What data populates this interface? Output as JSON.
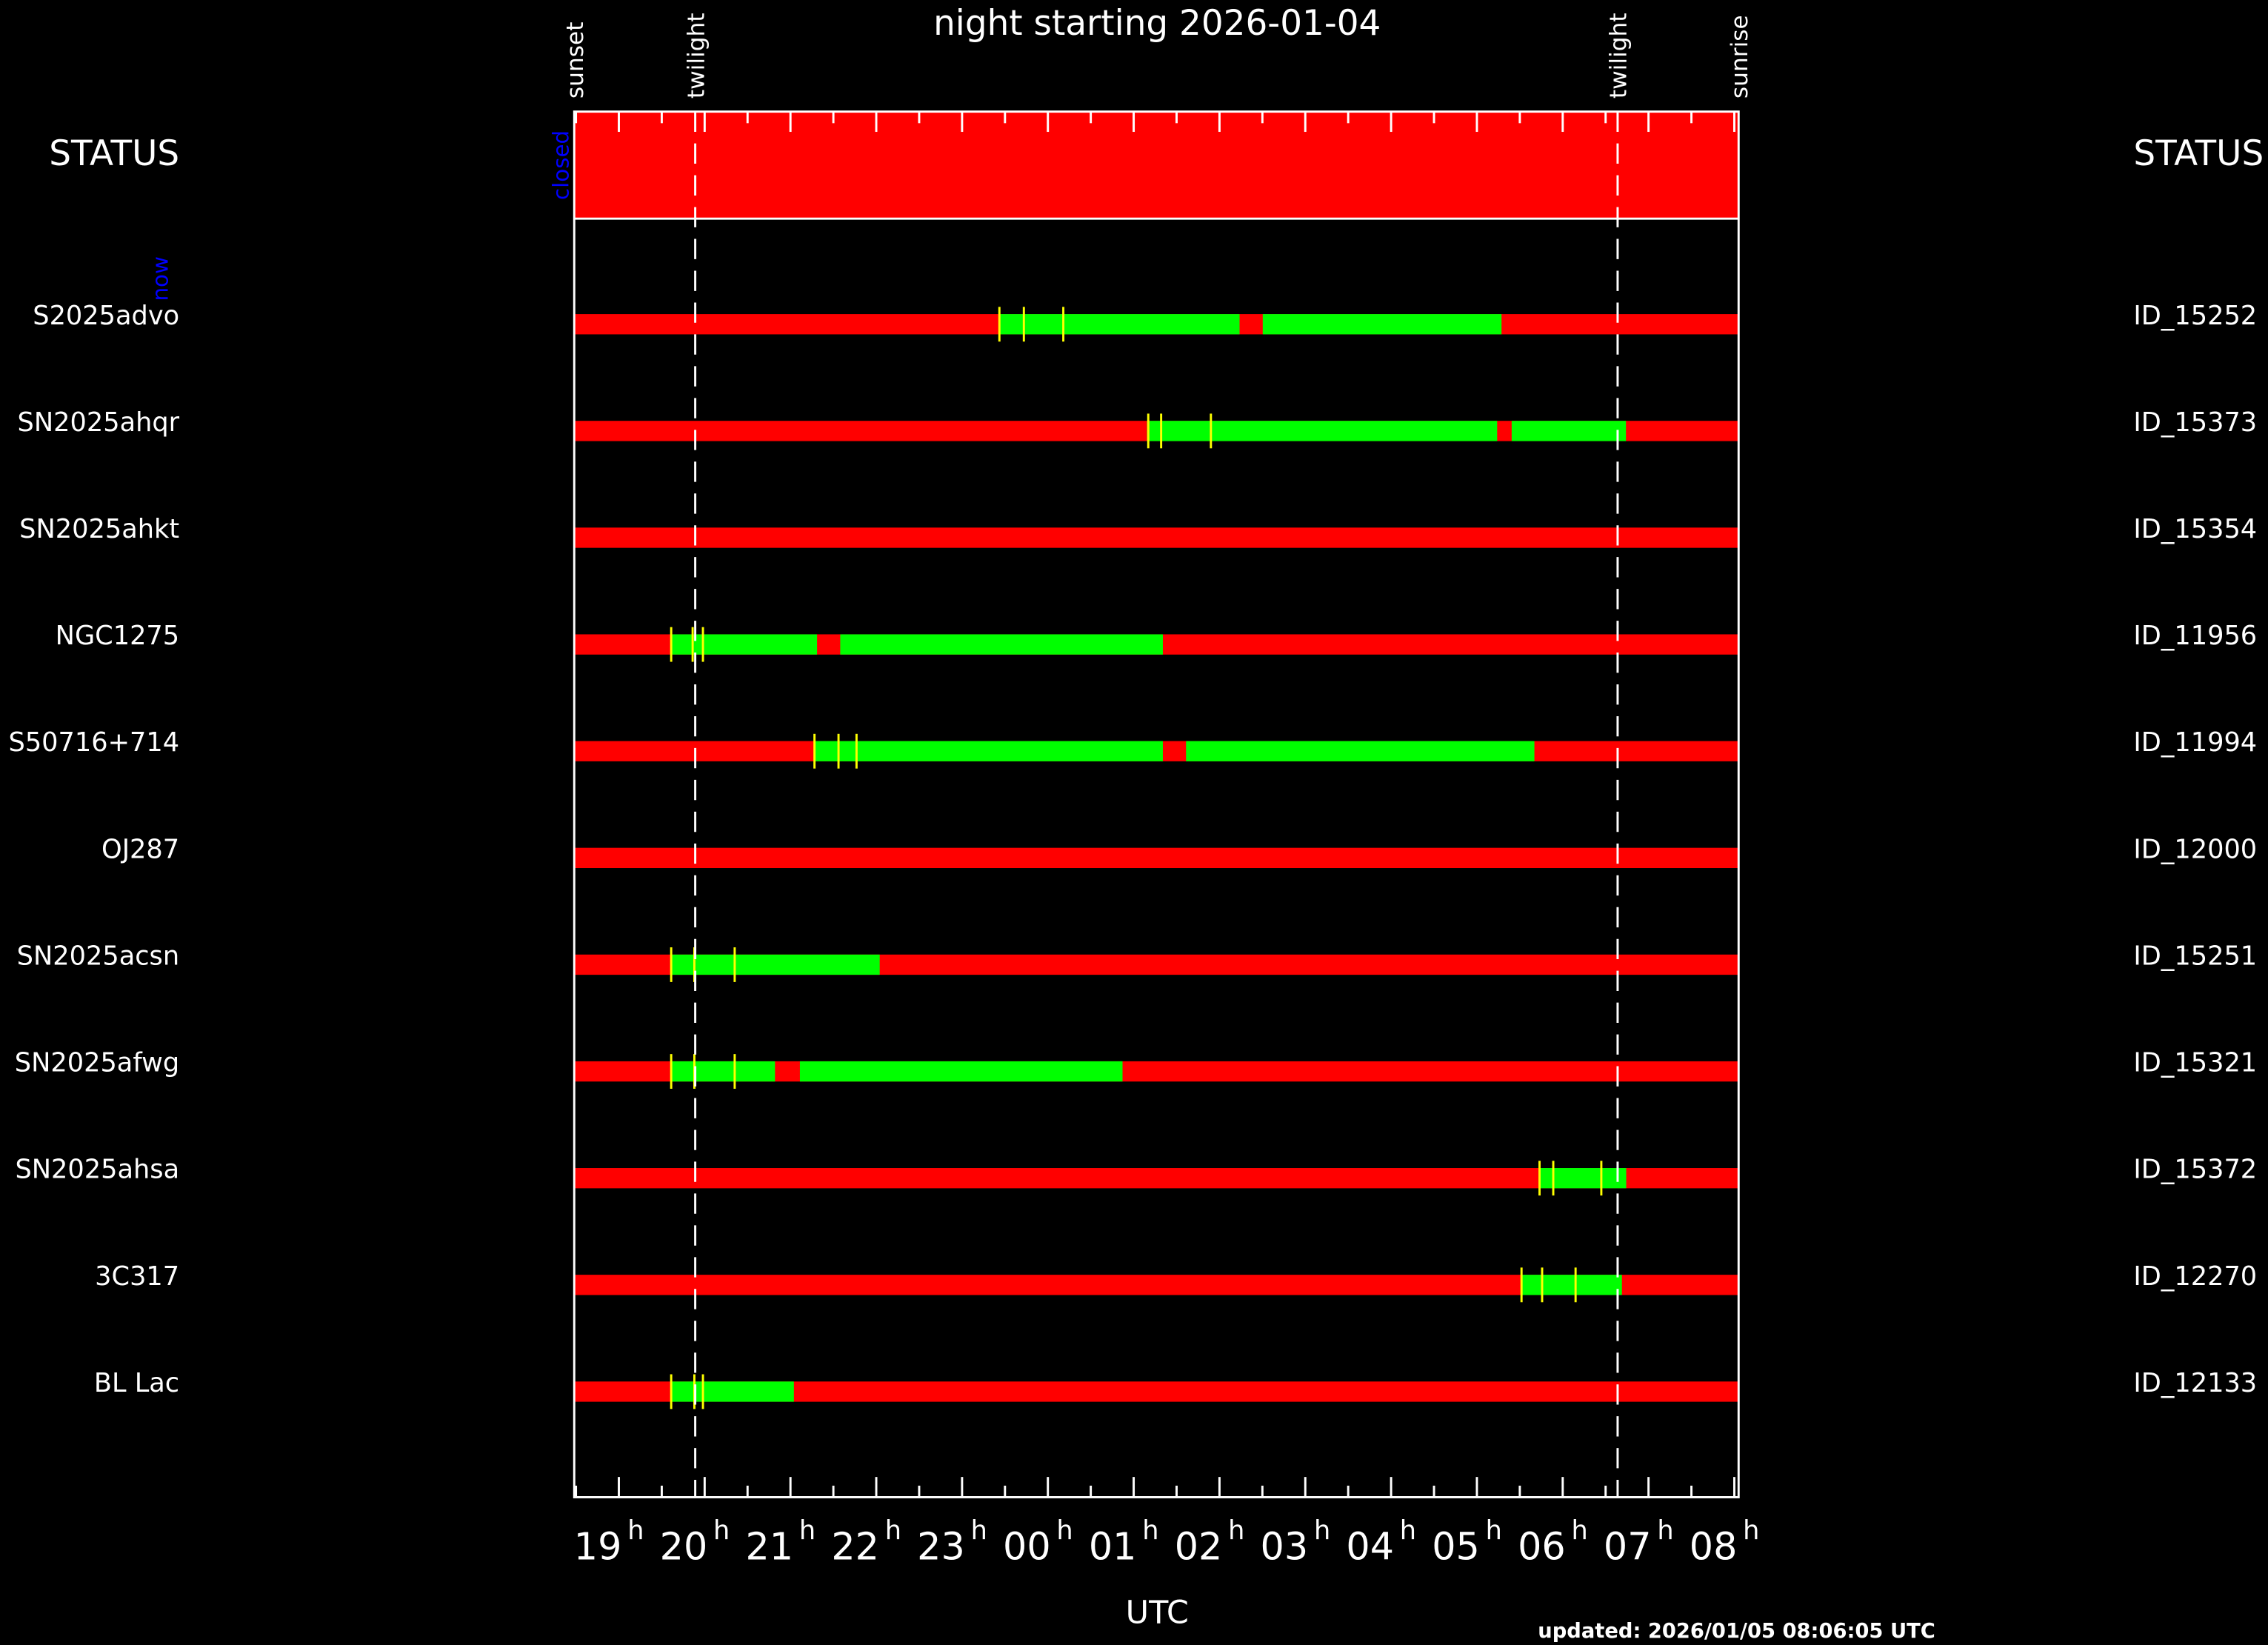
{
  "chart_data": {
    "type": "timeline",
    "title": "night starting 2026-01-04",
    "xlabel": "UTC",
    "updated": "updated: 2026/01/05 08:06:05 UTC",
    "now_label": "now",
    "xlim": [
      18.48,
      32.05
    ],
    "xticks": [
      19,
      20,
      21,
      22,
      23,
      {
        "value": 24,
        "label": "00"
      },
      {
        "value": 25,
        "label": "01"
      },
      {
        "value": 26,
        "label": "02"
      },
      {
        "value": 27,
        "label": "03"
      },
      {
        "value": 28,
        "label": "04"
      },
      {
        "value": 29,
        "label": "05"
      },
      {
        "value": 30,
        "label": "06"
      },
      {
        "value": 31,
        "label": "07"
      },
      {
        "value": 32,
        "label": "08"
      }
    ],
    "xtick_suffix": "h",
    "events": [
      {
        "label": "sunset",
        "x": 18.48
      },
      {
        "label": "twilight",
        "x": 19.89
      },
      {
        "label": "twilight",
        "x": 30.64
      },
      {
        "label": "sunrise",
        "x": 32.05
      }
    ],
    "status": {
      "label": "STATUS",
      "state": "closed",
      "color": "#ff0000"
    },
    "colors": {
      "unobservable": "#ff0000",
      "observable": "#00ff00",
      "marker": "#ffff00"
    },
    "rows": [
      {
        "name": "S2025advo",
        "id": "ID_15252",
        "windows": [
          [
            23.435,
            26.234
          ],
          [
            26.504,
            29.287
          ]
        ],
        "markers": [
          23.435,
          23.72,
          24.18
        ]
      },
      {
        "name": "SN2025ahqr",
        "id": "ID_15373",
        "windows": [
          [
            25.155,
            29.236
          ],
          [
            29.405,
            30.737
          ]
        ],
        "markers": [
          25.17,
          25.32,
          25.9
        ]
      },
      {
        "name": "SN2025ahkt",
        "id": "ID_15354",
        "windows": [],
        "markers": []
      },
      {
        "name": "NGC1275",
        "id": "ID_11956",
        "windows": [
          [
            19.607,
            21.31
          ],
          [
            21.58,
            25.34
          ]
        ],
        "markers": [
          19.61,
          19.86,
          19.98
        ]
      },
      {
        "name": "S50716+714",
        "id": "ID_11994",
        "windows": [
          [
            21.28,
            25.34
          ],
          [
            25.61,
            29.67
          ]
        ],
        "markers": [
          21.28,
          21.56,
          21.77
        ]
      },
      {
        "name": "OJ287",
        "id": "ID_12000",
        "windows": [],
        "markers": []
      },
      {
        "name": "SN2025acsn",
        "id": "ID_15251",
        "windows": [
          [
            19.61,
            22.04
          ]
        ],
        "markers": [
          19.61,
          19.88,
          20.35
        ]
      },
      {
        "name": "SN2025afwg",
        "id": "ID_15321",
        "windows": [
          [
            19.61,
            20.82
          ],
          [
            21.11,
            24.87
          ]
        ],
        "markers": [
          19.61,
          19.88,
          20.35
        ]
      },
      {
        "name": "SN2025ahsa",
        "id": "ID_15372",
        "windows": [
          [
            29.73,
            30.74
          ]
        ],
        "markers": [
          29.73,
          29.89,
          30.45
        ]
      },
      {
        "name": "3C317",
        "id": "ID_12270",
        "windows": [
          [
            29.52,
            30.69
          ]
        ],
        "markers": [
          29.52,
          29.76,
          30.15
        ]
      },
      {
        "name": "BL Lac",
        "id": "ID_12133",
        "windows": [
          [
            19.61,
            21.04
          ]
        ],
        "markers": [
          19.61,
          19.88,
          19.98
        ]
      }
    ]
  }
}
